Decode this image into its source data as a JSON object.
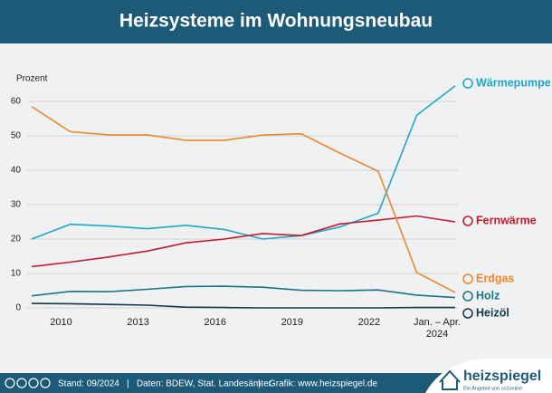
{
  "chart_data": {
    "type": "line",
    "title": "Heizsysteme im Wohnungsneubau",
    "y_label": "Prozent",
    "categories": [
      null,
      "2010",
      null,
      "2013",
      null,
      "2016",
      null,
      "2019",
      null,
      "2022",
      null,
      "Jan. – Apr. 2024"
    ],
    "series": [
      {
        "name": "Wärmepumpe",
        "color": "#1fa7c9",
        "values": [
          20,
          24.3,
          23.8,
          23,
          24,
          22.8,
          20,
          21,
          23.5,
          27.5,
          56,
          64.5
        ]
      },
      {
        "name": "Fernwärme",
        "color": "#c51a2e",
        "values": [
          12,
          13.3,
          14.8,
          16.5,
          18.9,
          20,
          21.6,
          21,
          24.4,
          25.5,
          26.7,
          25
        ]
      },
      {
        "name": "Erdgas",
        "color": "#ee872c",
        "values": [
          58.5,
          51.2,
          50.3,
          50.3,
          48.7,
          48.7,
          50.2,
          50.6,
          45,
          39.7,
          10.3,
          4.5
        ]
      },
      {
        "name": "Holz",
        "color": "#1e7486",
        "values": [
          3.5,
          4.8,
          4.7,
          5.4,
          6.2,
          6.3,
          6,
          5.1,
          5,
          5.2,
          3.7,
          3
        ]
      },
      {
        "name": "Heizöl",
        "color": "#16394a",
        "values": [
          1.3,
          1.2,
          1,
          0.8,
          0.2,
          0.1,
          0,
          0,
          0,
          0,
          0.1,
          0.1
        ]
      }
    ],
    "ylim": [
      -1,
      66
    ],
    "yticks": [
      0,
      10,
      20,
      30,
      40,
      50,
      60
    ],
    "grid": true
  },
  "footer": {
    "stand": "Stand: 09/2024",
    "daten": "Daten: BDEW, Stat. Landesämter",
    "grafik": "Grafik: www.heizspiegel.de",
    "logo": "heizspiegel",
    "logo_sub": "Ein Angebot von co2online"
  }
}
